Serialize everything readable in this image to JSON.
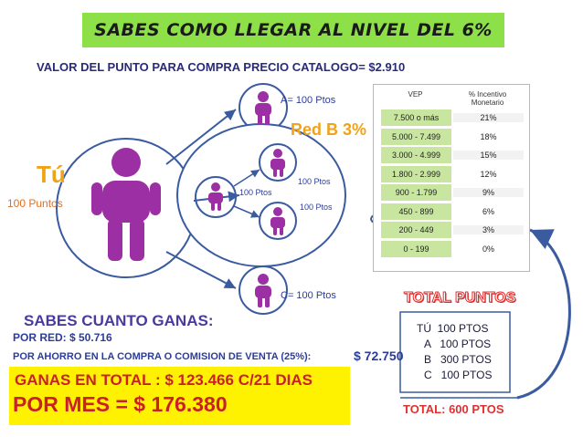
{
  "header": {
    "title": "SABES COMO LLEGAR AL NIVEL DEL 6%"
  },
  "subtitle": "VALOR DEL PUNTO PARA COMPRA PRECIO CATALOGO= $2.910",
  "diagram": {
    "tu_label": "Tú",
    "tu_points": "100 Puntos",
    "a_label": "A= 100 Ptos",
    "c_label": "C= 100 Ptos",
    "red_b_label": "Red B 3%",
    "b_center_points": "100 Ptos",
    "b_top_points": "100 Ptos",
    "b_bottom_points": "100 Ptos"
  },
  "incentive_table": {
    "headers": [
      "VEP",
      "% Incentivo Monetario"
    ],
    "rows": [
      [
        "7.500 o más",
        "21%"
      ],
      [
        "5.000 - 7.499",
        "18%"
      ],
      [
        "3.000 - 4.999",
        "15%"
      ],
      [
        "1.800 - 2.999",
        "12%"
      ],
      [
        "900 - 1.799",
        "9%"
      ],
      [
        "450 - 899",
        "6%"
      ],
      [
        "200 - 449",
        "3%"
      ],
      [
        "0 - 199",
        "0%"
      ]
    ],
    "highlighted_row": "450 - 899"
  },
  "total_puntos": {
    "title": "TOTAL PUNTOS",
    "items": [
      "TÚ  100 PTOS",
      "A   100 PTOS",
      "B   300 PTOS",
      "C   100 PTOS"
    ],
    "total": "TOTAL: 600 PTOS"
  },
  "earnings": {
    "question": "SABES CUANTO GANAS:",
    "por_red": "POR RED: $ 50.716",
    "por_ahorro": "POR AHORRO EN LA COMPRA O COMISION DE VENTA (25%):",
    "ahorro_amount": "$ 72.750",
    "total_line": "GANAS EN TOTAL :  $ 123.466 C/21 DIAS",
    "por_mes": "POR MES = $ 176.380"
  },
  "colors": {
    "title_bg": "#8ee049",
    "person": "#9b2fa3",
    "accent_orange": "#f0a21a",
    "red": "#c9202a",
    "yellow_box": "#fff200"
  }
}
